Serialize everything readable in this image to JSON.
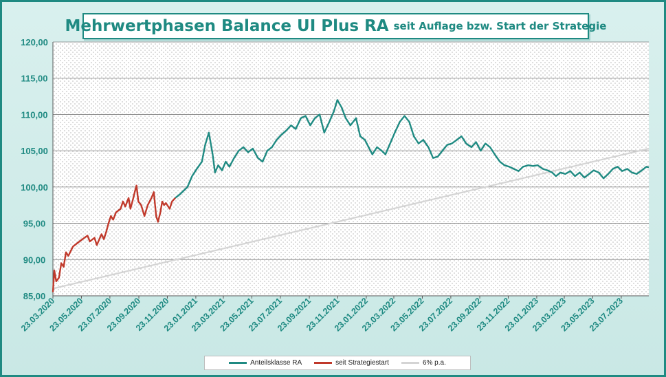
{
  "title": {
    "main": "Mehrwertphasen Balance UI Plus RA",
    "sub": "seit Auflage bzw. Start der Strategie"
  },
  "colors": {
    "series_main": "#1f8a82",
    "series_start": "#c0392b",
    "trend": "#d4d4d4",
    "axis_text": "#1f8a82",
    "grid": "#7a7a7a"
  },
  "chart_data": {
    "type": "line",
    "ylim": [
      85,
      120
    ],
    "y_ticks": [
      "85,00",
      "90,00",
      "95,00",
      "100,00",
      "105,00",
      "110,00",
      "115,00",
      "120,00"
    ],
    "x_range": [
      "2020-03-23",
      "2023-09-20"
    ],
    "x_ticks": [
      "23.03.2020",
      "23.05.2020",
      "23.07.2020",
      "23.09.2020",
      "23.11.2020",
      "23.01.2021",
      "23.03.2021",
      "23.05.2021",
      "23.07.2021",
      "23.09.2021",
      "23.11.2021",
      "23.01.2022",
      "23.03.2022",
      "23.05.2022",
      "23.07.2022",
      "23.09.2022",
      "23.11.2022",
      "23.01.2023",
      "23.03.2023",
      "23.05.2023",
      "23.07.2023"
    ],
    "grid": true,
    "legend_position": "bottom",
    "series": [
      {
        "name": "Anteilsklasse RA",
        "color": "#1f8a82",
        "points": [
          [
            "2020-12-10",
            98.5
          ],
          [
            "2020-12-20",
            99.0
          ],
          [
            "2021-01-05",
            100.0
          ],
          [
            "2021-01-15",
            101.5
          ],
          [
            "2021-01-25",
            102.5
          ],
          [
            "2021-02-05",
            103.5
          ],
          [
            "2021-02-12",
            105.8
          ],
          [
            "2021-02-20",
            107.5
          ],
          [
            "2021-02-28",
            104.5
          ],
          [
            "2021-03-05",
            102.0
          ],
          [
            "2021-03-12",
            103.0
          ],
          [
            "2021-03-20",
            102.3
          ],
          [
            "2021-03-28",
            103.5
          ],
          [
            "2021-04-05",
            102.8
          ],
          [
            "2021-04-15",
            104.0
          ],
          [
            "2021-04-25",
            105.0
          ],
          [
            "2021-05-05",
            105.5
          ],
          [
            "2021-05-15",
            104.8
          ],
          [
            "2021-05-25",
            105.3
          ],
          [
            "2021-06-05",
            104.0
          ],
          [
            "2021-06-15",
            103.5
          ],
          [
            "2021-06-25",
            105.0
          ],
          [
            "2021-07-05",
            105.5
          ],
          [
            "2021-07-15",
            106.5
          ],
          [
            "2021-07-25",
            107.2
          ],
          [
            "2021-08-05",
            107.8
          ],
          [
            "2021-08-15",
            108.5
          ],
          [
            "2021-08-25",
            108.0
          ],
          [
            "2021-09-05",
            109.5
          ],
          [
            "2021-09-15",
            109.8
          ],
          [
            "2021-09-25",
            108.5
          ],
          [
            "2021-10-05",
            109.5
          ],
          [
            "2021-10-15",
            110.0
          ],
          [
            "2021-10-25",
            107.5
          ],
          [
            "2021-11-05",
            109.0
          ],
          [
            "2021-11-15",
            110.5
          ],
          [
            "2021-11-22",
            112.0
          ],
          [
            "2021-12-01",
            111.0
          ],
          [
            "2021-12-10",
            109.5
          ],
          [
            "2021-12-20",
            108.5
          ],
          [
            "2022-01-01",
            109.5
          ],
          [
            "2022-01-10",
            107.0
          ],
          [
            "2022-01-20",
            106.5
          ],
          [
            "2022-01-28",
            105.5
          ],
          [
            "2022-02-05",
            104.5
          ],
          [
            "2022-02-15",
            105.5
          ],
          [
            "2022-02-25",
            105.0
          ],
          [
            "2022-03-05",
            104.5
          ],
          [
            "2022-03-15",
            106.0
          ],
          [
            "2022-03-25",
            107.5
          ],
          [
            "2022-04-05",
            109.0
          ],
          [
            "2022-04-15",
            109.8
          ],
          [
            "2022-04-25",
            109.0
          ],
          [
            "2022-05-05",
            107.0
          ],
          [
            "2022-05-15",
            106.0
          ],
          [
            "2022-05-25",
            106.5
          ],
          [
            "2022-06-05",
            105.5
          ],
          [
            "2022-06-15",
            104.0
          ],
          [
            "2022-06-25",
            104.2
          ],
          [
            "2022-07-05",
            105.0
          ],
          [
            "2022-07-15",
            105.8
          ],
          [
            "2022-07-25",
            106.0
          ],
          [
            "2022-08-05",
            106.5
          ],
          [
            "2022-08-15",
            107.0
          ],
          [
            "2022-08-25",
            106.0
          ],
          [
            "2022-09-05",
            105.5
          ],
          [
            "2022-09-15",
            106.2
          ],
          [
            "2022-09-25",
            105.0
          ],
          [
            "2022-10-05",
            106.0
          ],
          [
            "2022-10-15",
            105.5
          ],
          [
            "2022-10-25",
            104.5
          ],
          [
            "2022-11-05",
            103.5
          ],
          [
            "2022-11-15",
            103.0
          ],
          [
            "2022-11-25",
            102.8
          ],
          [
            "2022-12-05",
            102.5
          ],
          [
            "2022-12-15",
            102.2
          ],
          [
            "2022-12-25",
            102.8
          ],
          [
            "2023-01-05",
            103.0
          ],
          [
            "2023-01-15",
            102.9
          ],
          [
            "2023-01-25",
            103.0
          ],
          [
            "2023-02-05",
            102.5
          ],
          [
            "2023-02-15",
            102.3
          ],
          [
            "2023-02-25",
            102.0
          ],
          [
            "2023-03-05",
            101.5
          ],
          [
            "2023-03-15",
            102.0
          ],
          [
            "2023-03-25",
            101.8
          ],
          [
            "2023-04-05",
            102.2
          ],
          [
            "2023-04-15",
            101.5
          ],
          [
            "2023-04-25",
            102.0
          ],
          [
            "2023-05-05",
            101.3
          ],
          [
            "2023-05-15",
            101.8
          ],
          [
            "2023-05-25",
            102.3
          ],
          [
            "2023-06-05",
            102.0
          ],
          [
            "2023-06-15",
            101.2
          ],
          [
            "2023-06-25",
            101.8
          ],
          [
            "2023-07-05",
            102.5
          ],
          [
            "2023-07-15",
            102.8
          ],
          [
            "2023-07-25",
            102.2
          ],
          [
            "2023-08-05",
            102.5
          ],
          [
            "2023-08-15",
            102.0
          ],
          [
            "2023-08-25",
            101.8
          ],
          [
            "2023-09-05",
            102.3
          ],
          [
            "2023-09-15",
            102.8
          ],
          [
            "2023-09-20",
            102.7
          ]
        ]
      },
      {
        "name": "seit Strategiestart",
        "color": "#c0392b",
        "points": [
          [
            "2020-03-23",
            85.5
          ],
          [
            "2020-03-26",
            88.5
          ],
          [
            "2020-03-30",
            87.0
          ],
          [
            "2020-04-05",
            87.5
          ],
          [
            "2020-04-10",
            89.5
          ],
          [
            "2020-04-15",
            89.0
          ],
          [
            "2020-04-20",
            91.0
          ],
          [
            "2020-04-25",
            90.5
          ],
          [
            "2020-05-05",
            91.8
          ],
          [
            "2020-05-15",
            92.3
          ],
          [
            "2020-05-25",
            92.8
          ],
          [
            "2020-06-05",
            93.3
          ],
          [
            "2020-06-10",
            92.5
          ],
          [
            "2020-06-20",
            93.0
          ],
          [
            "2020-06-25",
            92.0
          ],
          [
            "2020-07-05",
            93.5
          ],
          [
            "2020-07-10",
            92.8
          ],
          [
            "2020-07-15",
            93.8
          ],
          [
            "2020-07-20",
            95.0
          ],
          [
            "2020-07-25",
            96.0
          ],
          [
            "2020-07-30",
            95.5
          ],
          [
            "2020-08-05",
            96.5
          ],
          [
            "2020-08-15",
            97.0
          ],
          [
            "2020-08-20",
            98.0
          ],
          [
            "2020-08-25",
            97.3
          ],
          [
            "2020-09-01",
            98.5
          ],
          [
            "2020-09-05",
            97.0
          ],
          [
            "2020-09-10",
            98.2
          ],
          [
            "2020-09-15",
            99.5
          ],
          [
            "2020-09-18",
            100.2
          ],
          [
            "2020-09-22",
            98.0
          ],
          [
            "2020-09-28",
            97.5
          ],
          [
            "2020-10-05",
            96.0
          ],
          [
            "2020-10-12",
            97.5
          ],
          [
            "2020-10-20",
            98.5
          ],
          [
            "2020-10-25",
            99.3
          ],
          [
            "2020-10-30",
            96.0
          ],
          [
            "2020-11-03",
            95.2
          ],
          [
            "2020-11-08",
            96.5
          ],
          [
            "2020-11-12",
            98.0
          ],
          [
            "2020-11-16",
            97.5
          ],
          [
            "2020-11-20",
            97.8
          ],
          [
            "2020-11-28",
            97.0
          ],
          [
            "2020-12-03",
            98.0
          ],
          [
            "2020-12-10",
            98.5
          ]
        ]
      },
      {
        "name": "6% p.a.",
        "color": "#d4d4d4",
        "points": [
          [
            "2020-03-23",
            86.0
          ],
          [
            "2023-09-20",
            105.3
          ]
        ]
      }
    ]
  }
}
